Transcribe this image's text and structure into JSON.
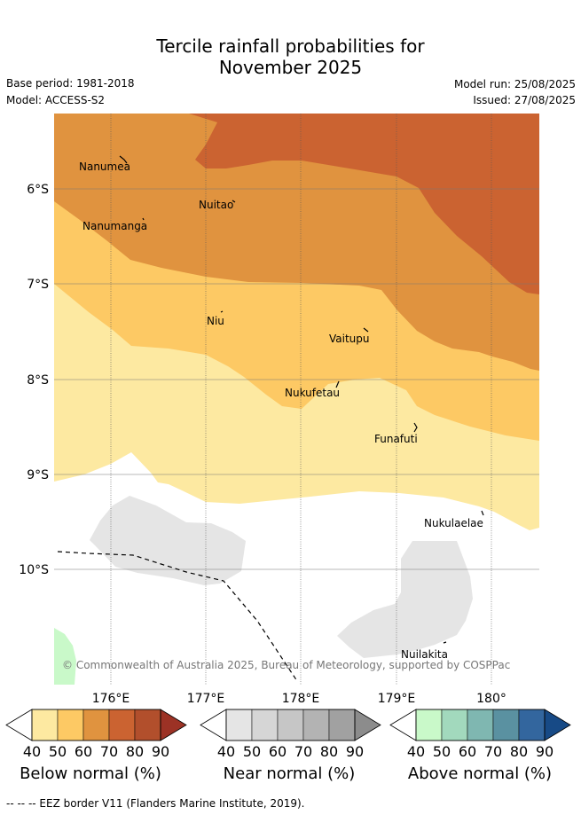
{
  "title_line1": "Tercile rainfall probabilities for",
  "title_line2": "November 2025",
  "base_period": "Base period: 1981-2018",
  "model": "Model: ACCESS-S2",
  "model_run": "Model run: 25/08/2025",
  "issued": "Issued: 27/08/2025",
  "copyright": "© Commonwealth of Australia 2025, Bureau of Meteorology, supported by COSPPac",
  "footer": "-- -- -- EEZ border V11 (Flanders Marine Institute, 2019).",
  "lon_ticks": [
    "176°E",
    "177°E",
    "178°E",
    "179°E",
    "180°"
  ],
  "lat_ticks": [
    "6°S",
    "7°S",
    "8°S",
    "9°S",
    "10°S"
  ],
  "places": [
    {
      "name": "Nanumea"
    },
    {
      "name": "Nuitao"
    },
    {
      "name": "Nanumanga"
    },
    {
      "name": "Niu"
    },
    {
      "name": "Vaitupu"
    },
    {
      "name": "Nukufetau"
    },
    {
      "name": "Funafuti"
    },
    {
      "name": "Nukulaelae"
    },
    {
      "name": "Nuilakita"
    }
  ],
  "colorbars": [
    {
      "title": "Below normal (%)",
      "ticks": [
        "40",
        "50",
        "60",
        "70",
        "80",
        "90"
      ],
      "colors": [
        "#ffffff",
        "#fde9a1",
        "#fdc964",
        "#e0933f",
        "#cb6331",
        "#b24f2c",
        "#9c3225"
      ]
    },
    {
      "title": "Near normal (%)",
      "ticks": [
        "40",
        "50",
        "60",
        "70",
        "80",
        "90"
      ],
      "colors": [
        "#ffffff",
        "#e5e5e5",
        "#d6d6d6",
        "#c6c6c6",
        "#b3b3b3",
        "#a1a1a1",
        "#8c8c8c"
      ]
    },
    {
      "title": "Above normal (%)",
      "ticks": [
        "40",
        "50",
        "60",
        "70",
        "80",
        "90"
      ],
      "colors": [
        "#ffffff",
        "#c9f9c9",
        "#a2d9bd",
        "#7fb7b1",
        "#5a91a1",
        "#33669e",
        "#174a86"
      ]
    }
  ]
}
